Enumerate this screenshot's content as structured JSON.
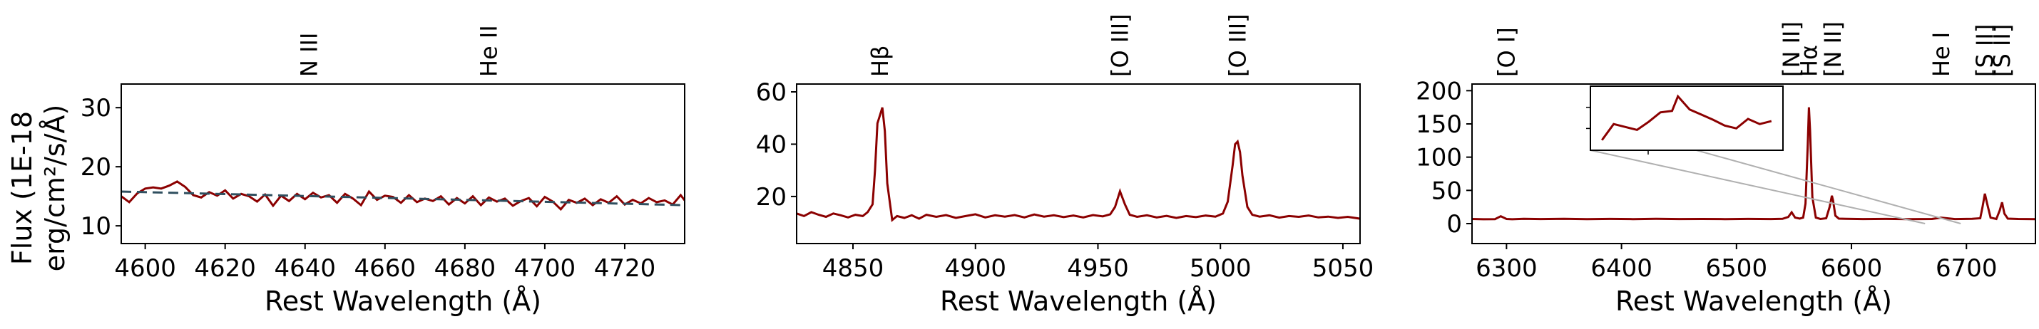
{
  "colors": {
    "spectrum": "#8b0000",
    "continuum": "#2f4f5f",
    "connector": "#b0b0b0",
    "frame": "#000000"
  },
  "figure": {
    "ylabel_line1": "Flux (1E-18",
    "ylabel_line2": "erg/cm²/s/Å)"
  },
  "chart_data": [
    {
      "type": "line",
      "xlabel": "Rest Wavelength (Å)",
      "ylabel": "Flux (1E-18 erg/cm²/s/Å)",
      "xlim": [
        4594,
        4735
      ],
      "ylim": [
        7,
        34
      ],
      "xticks": [
        4600,
        4620,
        4640,
        4660,
        4680,
        4700,
        4720
      ],
      "yticks": [
        10,
        20,
        30
      ],
      "line_labels": [
        {
          "label": "N III",
          "x": 4641
        },
        {
          "label": "He II",
          "x": 4686
        }
      ],
      "series": [
        {
          "x": [
            4594,
            4596,
            4598,
            4600,
            4602,
            4604,
            4606,
            4608,
            4610,
            4612,
            4614,
            4616,
            4618,
            4620,
            4622,
            4624,
            4626,
            4628,
            4630,
            4632,
            4634,
            4636,
            4638,
            4640,
            4642,
            4644,
            4646,
            4648,
            4650,
            4652,
            4654,
            4656,
            4658,
            4660,
            4662,
            4664,
            4666,
            4668,
            4670,
            4672,
            4674,
            4676,
            4678,
            4680,
            4682,
            4684,
            4686,
            4688,
            4690,
            4692,
            4694,
            4696,
            4698,
            4700,
            4702,
            4704,
            4706,
            4708,
            4710,
            4712,
            4714,
            4716,
            4718,
            4720,
            4722,
            4724,
            4726,
            4728,
            4730,
            4732,
            4734,
            4735
          ],
          "y": [
            15.0,
            14.0,
            15.5,
            16.3,
            16.5,
            16.3,
            16.8,
            17.5,
            16.6,
            15.2,
            14.8,
            15.7,
            15.1,
            16.0,
            14.6,
            15.4,
            15.0,
            14.1,
            15.3,
            13.4,
            15.1,
            14.2,
            15.4,
            14.5,
            15.6,
            14.8,
            15.2,
            13.9,
            15.4,
            14.6,
            13.5,
            15.8,
            14.4,
            15.1,
            14.9,
            13.9,
            15.2,
            14.0,
            14.6,
            14.2,
            15.0,
            13.6,
            14.7,
            13.8,
            15.0,
            13.5,
            14.8,
            14.1,
            14.6,
            13.4,
            14.2,
            14.7,
            13.3,
            14.9,
            14.1,
            12.8,
            14.4,
            13.9,
            14.6,
            13.5,
            14.5,
            13.9,
            15.0,
            13.6,
            14.4,
            13.8,
            14.7,
            14.0,
            14.3,
            13.6,
            15.2,
            14.3
          ]
        },
        {
          "style": "dashed",
          "x": [
            4594,
            4735
          ],
          "y": [
            15.8,
            13.5
          ]
        }
      ]
    },
    {
      "type": "line",
      "xlabel": "Rest Wavelength (Å)",
      "xlim": [
        4827,
        5057
      ],
      "ylim": [
        2,
        63
      ],
      "xticks": [
        4850,
        4900,
        4950,
        5000,
        5050
      ],
      "yticks": [
        20,
        40,
        60
      ],
      "line_labels": [
        {
          "label": "Hβ",
          "x": 4861
        },
        {
          "label": "[O III]",
          "x": 4959
        },
        {
          "label": "[O III]",
          "x": 5007
        }
      ],
      "series": [
        {
          "x": [
            4827,
            4830,
            4833,
            4836,
            4839,
            4842,
            4845,
            4848,
            4851,
            4854,
            4856,
            4858,
            4859,
            4860,
            4861,
            4862,
            4863,
            4864,
            4866,
            4868,
            4871,
            4874,
            4877,
            4880,
            4884,
            4888,
            4892,
            4896,
            4900,
            4904,
            4908,
            4912,
            4916,
            4920,
            4924,
            4928,
            4932,
            4936,
            4940,
            4944,
            4948,
            4952,
            4955,
            4957,
            4959,
            4961,
            4963,
            4966,
            4970,
            4974,
            4978,
            4982,
            4986,
            4990,
            4994,
            4998,
            5001,
            5003,
            5005,
            5006,
            5007,
            5008,
            5009,
            5011,
            5013,
            5016,
            5020,
            5024,
            5028,
            5032,
            5036,
            5040,
            5044,
            5048,
            5052,
            5057
          ],
          "y": [
            13.5,
            12.5,
            14.0,
            13.0,
            12.2,
            13.5,
            12.8,
            12.0,
            13.0,
            12.5,
            14.0,
            17.0,
            30.0,
            48.0,
            51.0,
            54.0,
            45.0,
            25.0,
            11.0,
            12.5,
            11.8,
            12.8,
            11.5,
            13.0,
            12.2,
            12.9,
            11.8,
            12.5,
            13.2,
            12.0,
            12.8,
            12.3,
            12.9,
            12.0,
            13.1,
            12.3,
            12.8,
            12.1,
            12.7,
            12.0,
            12.9,
            12.4,
            13.2,
            16.0,
            22.0,
            17.0,
            13.0,
            12.2,
            12.8,
            12.0,
            12.6,
            11.8,
            12.5,
            12.1,
            12.7,
            12.3,
            13.5,
            18.0,
            32.0,
            40.0,
            41.0,
            37.0,
            28.0,
            16.0,
            13.0,
            12.3,
            12.8,
            11.9,
            12.5,
            12.2,
            12.7,
            12.0,
            12.3,
            11.8,
            12.2,
            11.5
          ]
        }
      ]
    },
    {
      "type": "line",
      "xlabel": "Rest Wavelength (Å)",
      "xlim": [
        6270,
        6760
      ],
      "ylim": [
        -30,
        210
      ],
      "xticks": [
        6300,
        6400,
        6500,
        6600,
        6700
      ],
      "yticks": [
        0,
        50,
        100,
        150,
        200
      ],
      "line_labels": [
        {
          "label": "[O I]",
          "x": 6300
        },
        {
          "label": "[N II]",
          "x": 6548
        },
        {
          "label": "Hα",
          "x": 6563
        },
        {
          "label": "[N II]",
          "x": 6584
        },
        {
          "label": "He I",
          "x": 6678
        },
        {
          "label": "[S II]",
          "x": 6716
        },
        {
          "label": "[S II]",
          "x": 6731
        }
      ],
      "inset": {
        "xlim": [
          6664,
          6695
        ],
        "x": [
          6665,
          6667,
          6669,
          6671,
          6673,
          6675,
          6677,
          6678,
          6680,
          6682,
          6684,
          6686,
          6688,
          6690,
          6692,
          6694
        ],
        "y": [
          3.0,
          5.2,
          4.8,
          4.4,
          5.5,
          6.8,
          7.0,
          9.0,
          7.2,
          6.5,
          5.8,
          5.0,
          4.6,
          5.9,
          5.2,
          5.6
        ],
        "ylim": [
          2,
          10
        ]
      },
      "series": [
        {
          "x": [
            6270,
            6280,
            6290,
            6295,
            6300,
            6305,
            6315,
            6330,
            6350,
            6370,
            6390,
            6410,
            6430,
            6450,
            6470,
            6490,
            6510,
            6530,
            6540,
            6545,
            6548,
            6551,
            6555,
            6558,
            6560,
            6562,
            6563,
            6564,
            6566,
            6569,
            6573,
            6578,
            6581,
            6583,
            6584,
            6586,
            6589,
            6595,
            6610,
            6630,
            6650,
            6670,
            6678,
            6690,
            6705,
            6712,
            6714,
            6716,
            6718,
            6721,
            6726,
            6729,
            6731,
            6733,
            6736,
            6745,
            6760
          ],
          "y": [
            7,
            6.5,
            6.8,
            11,
            7,
            6.5,
            7.2,
            6.9,
            7.3,
            6.8,
            7.1,
            6.7,
            7.2,
            6.9,
            7.0,
            6.8,
            7.1,
            6.9,
            7.2,
            10,
            17,
            9,
            7.5,
            9,
            30,
            120,
            175,
            140,
            40,
            9,
            7,
            8,
            25,
            42,
            35,
            12,
            7.5,
            7.2,
            6.9,
            7.1,
            6.8,
            7.0,
            9,
            6.9,
            7.2,
            8,
            25,
            45,
            30,
            9,
            7,
            20,
            32,
            15,
            7.5,
            7.0,
            6.8
          ]
        }
      ]
    }
  ]
}
